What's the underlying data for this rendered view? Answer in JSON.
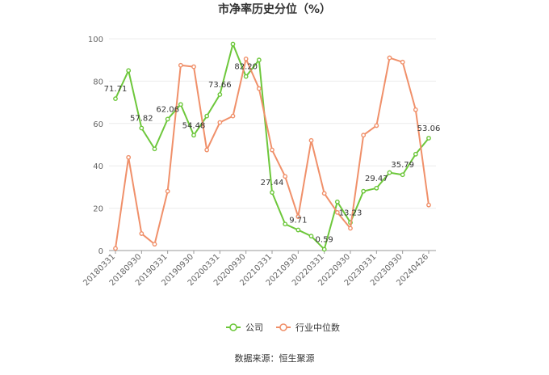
{
  "chart_data": {
    "type": "line",
    "title": "市净率历史分位（%）",
    "source_text": "数据来源：恒生聚源",
    "ylim": [
      0,
      100
    ],
    "yticks": [
      0,
      20,
      40,
      60,
      80,
      100
    ],
    "x_tick_labels": [
      "20180331",
      "20180930",
      "20190331",
      "20190930",
      "20200331",
      "20200930",
      "20210331",
      "20210930",
      "20220331",
      "20220930",
      "20230331",
      "20230930",
      "20240426"
    ],
    "legend_position": "bottom",
    "grid": true,
    "series": [
      {
        "name": "公司",
        "color": "#6dc73b",
        "values": [
          71.71,
          85.0,
          57.82,
          48.0,
          62.06,
          69.0,
          54.48,
          63.5,
          73.66,
          97.5,
          82.2,
          90.0,
          27.44,
          12.5,
          9.71,
          6.8,
          0.59,
          23.0,
          13.23,
          28.0,
          29.47,
          36.8,
          35.79,
          45.5,
          53.06
        ],
        "point_labels": [
          {
            "index": 0,
            "text": "71.71"
          },
          {
            "index": 2,
            "text": "57.82"
          },
          {
            "index": 4,
            "text": "62.06"
          },
          {
            "index": 6,
            "text": "54.48"
          },
          {
            "index": 8,
            "text": "73.66"
          },
          {
            "index": 10,
            "text": "82.20"
          },
          {
            "index": 12,
            "text": "27.44"
          },
          {
            "index": 14,
            "text": "9.71"
          },
          {
            "index": 16,
            "text": "0.59"
          },
          {
            "index": 18,
            "text": "13.23"
          },
          {
            "index": 20,
            "text": "29.47"
          },
          {
            "index": 22,
            "text": "35.79"
          },
          {
            "index": 24,
            "text": "53.06"
          }
        ]
      },
      {
        "name": "行业中位数",
        "color": "#f0906a",
        "values": [
          1.0,
          44.0,
          8.0,
          3.0,
          28.0,
          87.5,
          86.8,
          47.5,
          60.5,
          63.5,
          90.5,
          76.5,
          47.5,
          35.0,
          16.0,
          52.0,
          27.0,
          18.0,
          10.5,
          54.5,
          59.0,
          91.0,
          89.0,
          66.5,
          21.5
        ]
      }
    ]
  }
}
